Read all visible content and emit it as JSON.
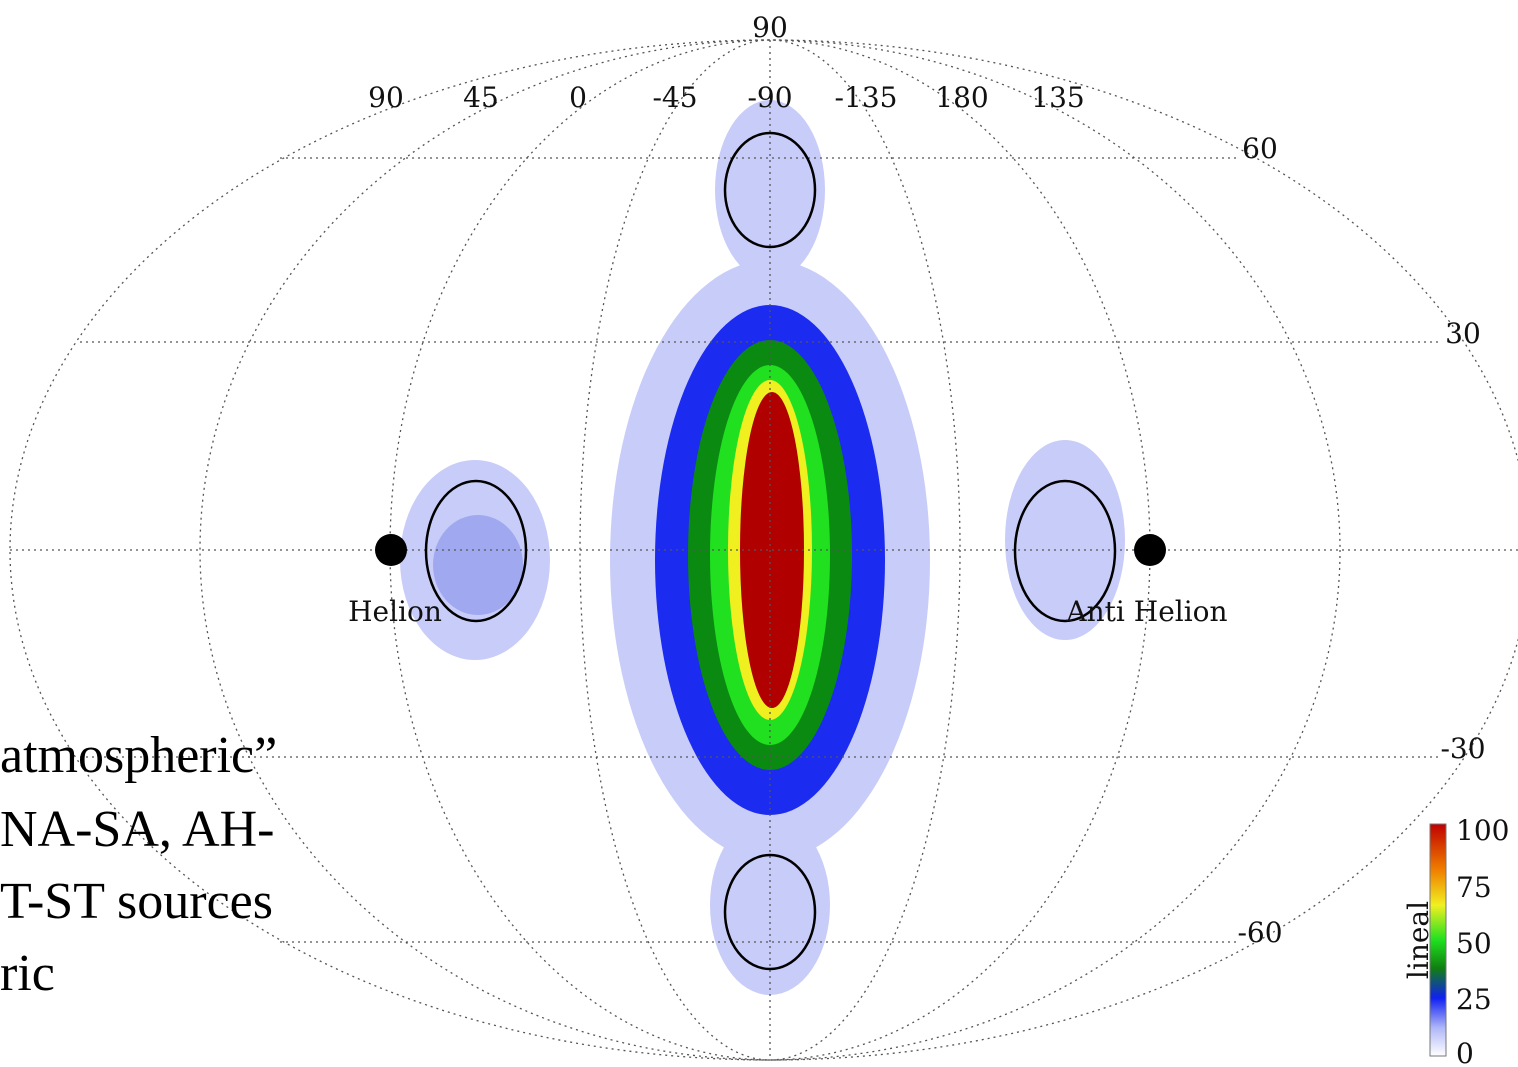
{
  "top_label": "90",
  "longitude_labels": [
    "90",
    "45",
    "0",
    "-45",
    "-90",
    "-135",
    "180",
    "135"
  ],
  "latitude_labels": [
    "60",
    "30",
    "-30",
    "-60"
  ],
  "markers": [
    "Helion",
    "Anti Helion"
  ],
  "colorbar": {
    "label": "lineal",
    "ticks": [
      "100",
      "75",
      "50",
      "25",
      "0"
    ]
  },
  "text_lines": [
    "atmospheric”",
    "NA-SA, AH-",
    "T-ST  sources",
    "ric"
  ]
}
